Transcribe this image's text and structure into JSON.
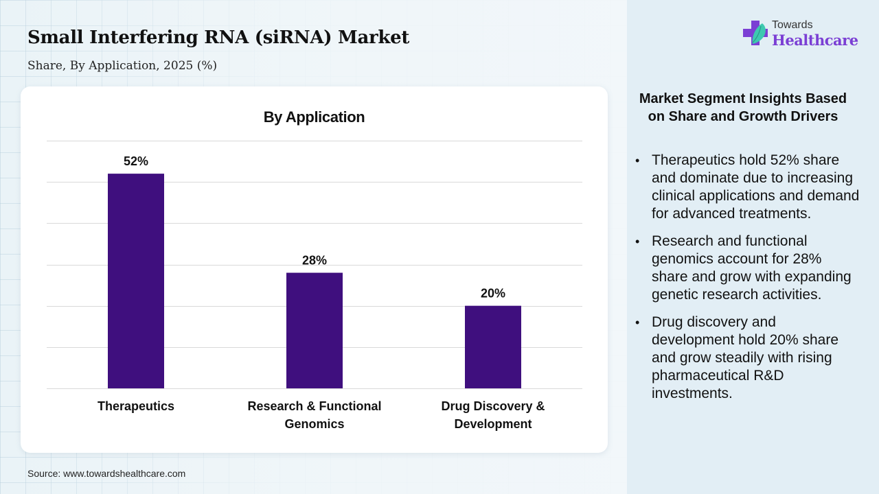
{
  "header": {
    "title": "Small Interfering RNA (siRNA) Market",
    "subtitle": "Share, By Application, 2025 (%)"
  },
  "logo": {
    "line1": "Towards",
    "line2": "Healthcare",
    "icon": "medical-cross-leaf-icon",
    "colors": {
      "cross": "#7b3fd4",
      "leaf": "#3ec9b0"
    }
  },
  "chart_data": {
    "type": "bar",
    "title": "By Application",
    "categories": [
      "Therapeutics",
      "Research & Functional Genomics",
      "Drug Discovery & Development"
    ],
    "category_lines": [
      [
        "Therapeutics"
      ],
      [
        "Research & Functional",
        "Genomics"
      ],
      [
        "Drug Discovery &",
        "Development"
      ]
    ],
    "values": [
      52,
      28,
      20
    ],
    "data_labels": [
      "52%",
      "28%",
      "20%"
    ],
    "xlabel": "",
    "ylabel": "",
    "ylim": [
      0,
      60
    ],
    "grid_step": 10,
    "grid": true,
    "y_tick_labels_shown": false,
    "bar_color": "#3f0f7e",
    "grid_color": "#d9d9d9"
  },
  "source": "Source: www.towardshealthcare.com",
  "insights": {
    "title": "Market Segment Insights Based on Share and Growth Drivers",
    "items": [
      "Therapeutics hold 52% share and dominate due to increasing clinical applications and demand for advanced treatments.",
      "Research and functional genomics account for 28% share and grow with expanding genetic research activities.",
      "Drug discovery and development hold 20% share and grow steadily with rising pharmaceutical R&D investments."
    ],
    "bullet": "•"
  }
}
